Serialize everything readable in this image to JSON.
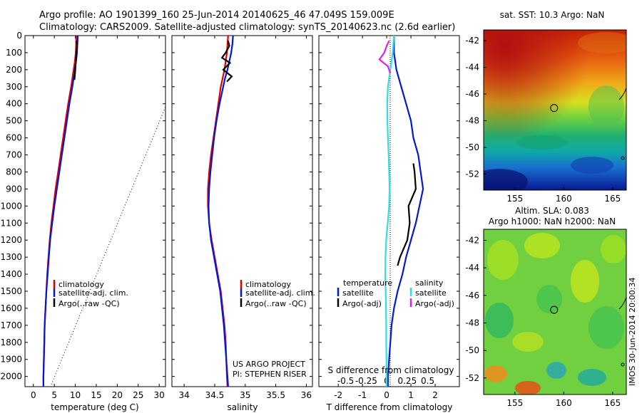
{
  "header": {
    "line1": "Argo profile: AO 1901399_160 25-Jun-2014 20140625_46 47.049S 159.009E",
    "line2": "Climatology: CARS2009. Satellite-adjusted climatology: synTS_20140623.nc (2.6d earlier)"
  },
  "colors": {
    "climatology": "#e00000",
    "satellite": "#0018d8",
    "argo": "#000000",
    "satellite_salinity": "#30e0e0",
    "argo_salinity_adj": "#e020e0"
  },
  "chart_data": [
    {
      "type": "line",
      "id": "temperature",
      "xlabel": "temperature (deg C)",
      "xticks": [
        "0",
        "5",
        "10",
        "15",
        "20",
        "25",
        "30"
      ],
      "xlim": [
        -2,
        31.5
      ],
      "ylim": [
        2060,
        0
      ],
      "yticks": [
        "0",
        "100",
        "200",
        "300",
        "400",
        "500",
        "600",
        "700",
        "800",
        "900",
        "1000",
        "1100",
        "1200",
        "1300",
        "1400",
        "1500",
        "1600",
        "1700",
        "1800",
        "1900",
        "2000"
      ],
      "legend": [
        "climatology",
        "satellite-adj. clim.",
        "Argo(..raw -QC)"
      ],
      "series": [
        {
          "name": "climatology",
          "depth": [
            0,
            50,
            100,
            150,
            200,
            250,
            300,
            400,
            500,
            600,
            700,
            800,
            900,
            1000,
            1100,
            1200,
            1300,
            1400,
            1500,
            1600,
            1700,
            1800,
            1900,
            2000,
            2060
          ],
          "values": [
            10.2,
            10.2,
            10.1,
            9.9,
            9.6,
            9.3,
            9.0,
            8.3,
            7.7,
            7.1,
            6.5,
            5.9,
            5.3,
            4.8,
            4.3,
            3.9,
            3.6,
            3.3,
            3.1,
            2.9,
            2.7,
            2.6,
            2.5,
            2.4,
            2.4
          ]
        },
        {
          "name": "satellite-adj. clim.",
          "depth": [
            0,
            50,
            100,
            150,
            200,
            250,
            300,
            400,
            500,
            600,
            700,
            800,
            900,
            1000,
            1100,
            1200,
            1300,
            1400,
            1500,
            1600,
            1700,
            1800,
            1900,
            2000,
            2060
          ],
          "values": [
            10.6,
            10.5,
            10.4,
            10.2,
            9.9,
            9.6,
            9.3,
            8.6,
            8.0,
            7.4,
            6.8,
            6.2,
            5.6,
            5.0,
            4.5,
            4.0,
            3.7,
            3.4,
            3.1,
            2.9,
            2.7,
            2.6,
            2.5,
            2.4,
            2.4
          ]
        },
        {
          "name": "Argo(..raw -QC)",
          "depth": [
            30,
            60,
            100,
            150,
            200,
            260
          ],
          "values": [
            10.3,
            10.4,
            10.3,
            10.1,
            10.0,
            9.8
          ]
        }
      ]
    },
    {
      "type": "line",
      "id": "salinity",
      "xlabel": "salinity",
      "xticks": [
        "34",
        "34.5",
        "35",
        "35.5",
        "36"
      ],
      "xlim": [
        33.8,
        36.1
      ],
      "ylim": [
        2060,
        0
      ],
      "legend": [
        "climatology",
        "satellite-adj. clim.",
        "Argo(..raw -QC)"
      ],
      "annotation": [
        "US ARGO PROJECT",
        "PI: STEPHEN RISER"
      ],
      "series": [
        {
          "name": "climatology",
          "depth": [
            0,
            50,
            100,
            150,
            200,
            250,
            300,
            400,
            500,
            600,
            700,
            800,
            900,
            1000,
            1100,
            1200,
            1300,
            1400,
            1500,
            1600,
            1700,
            1800,
            1900,
            2000,
            2060
          ],
          "values": [
            34.72,
            34.71,
            34.7,
            34.68,
            34.66,
            34.63,
            34.6,
            34.56,
            34.52,
            34.48,
            34.44,
            34.41,
            34.39,
            34.39,
            34.41,
            34.45,
            34.5,
            34.55,
            34.6,
            34.63,
            34.66,
            34.68,
            34.69,
            34.7,
            34.71
          ]
        },
        {
          "name": "satellite-adj. clim.",
          "depth": [
            0,
            50,
            100,
            150,
            200,
            250,
            300,
            400,
            500,
            600,
            700,
            800,
            900,
            1000,
            1100,
            1200,
            1300,
            1400,
            1500,
            1600,
            1700,
            1800,
            1900,
            2000,
            2060
          ],
          "values": [
            34.8,
            34.79,
            34.77,
            34.74,
            34.71,
            34.67,
            34.64,
            34.58,
            34.53,
            34.49,
            34.46,
            34.43,
            34.41,
            34.4,
            34.41,
            34.44,
            34.49,
            34.54,
            34.59,
            34.62,
            34.65,
            34.67,
            34.69,
            34.71,
            34.72
          ]
        },
        {
          "name": "Argo(..raw -QC)",
          "depth": [
            30,
            60,
            100,
            130,
            160,
            200,
            240,
            270
          ],
          "values": [
            34.72,
            34.74,
            34.68,
            34.62,
            34.75,
            34.64,
            34.78,
            34.7
          ]
        }
      ]
    },
    {
      "type": "line",
      "id": "difference",
      "xlabel": "T difference from climatology",
      "top_xlabel": "S difference from climatology",
      "xticks": [
        "-2",
        "-1",
        "0",
        "1",
        "2"
      ],
      "top_xticks": [
        "-0.5",
        "-0.25",
        "0",
        "0.25",
        "0.5"
      ],
      "xlim": [
        -2.8,
        3.0
      ],
      "ylim": [
        2060,
        0
      ],
      "legend_temperature": {
        "header": "temperature",
        "items": [
          "satellite",
          "Argo(-adj)"
        ]
      },
      "legend_salinity": {
        "header": "salinity",
        "items": [
          "satellite",
          "Argo(-adj)"
        ]
      },
      "series": [
        {
          "name": "temperature satellite",
          "depth": [
            0,
            100,
            200,
            300,
            400,
            500,
            600,
            700,
            800,
            900,
            1000,
            1100,
            1200,
            1300,
            1400,
            1500,
            1600,
            1700,
            1800,
            1900,
            2000,
            2060
          ],
          "values": [
            0.3,
            0.3,
            0.4,
            0.6,
            0.8,
            1.0,
            1.1,
            1.3,
            1.4,
            1.5,
            1.35,
            1.2,
            1.0,
            0.8,
            0.65,
            0.45,
            0.3,
            0.2,
            0.15,
            0.1,
            0.05,
            0.05
          ]
        },
        {
          "name": "temperature Argo(-adj)",
          "depth": [
            750,
            800,
            900,
            1000,
            1100,
            1200,
            1300,
            1350
          ],
          "values": [
            1.1,
            1.15,
            1.2,
            0.9,
            0.95,
            0.85,
            0.55,
            0.45
          ]
        },
        {
          "name": "salinity satellite",
          "depth": [
            0,
            100,
            200,
            300,
            400,
            500,
            600,
            700,
            800,
            900,
            1000,
            1100,
            1200,
            1300,
            1400,
            1500,
            1600,
            1700,
            1800,
            1900,
            2000,
            2060
          ],
          "values": [
            0.3,
            0.25,
            0.15,
            0.05,
            0.02,
            0.03,
            0.05,
            0.08,
            0.1,
            0.12,
            0.1,
            0.04,
            -0.02,
            -0.05,
            -0.06,
            -0.04,
            -0.03,
            -0.02,
            -0.02,
            -0.01,
            -0.01,
            -0.01
          ]
        },
        {
          "name": "salinity Argo(-adj)",
          "depth": [
            30,
            60,
            100,
            140,
            180,
            220
          ],
          "values": [
            0.1,
            0.0,
            -0.1,
            -0.3,
            0.05,
            0.15
          ]
        }
      ]
    }
  ],
  "maps": {
    "sst": {
      "title": "sat. SST: 10.3 Argo: NaN",
      "lat_ticks": [
        "-42",
        "-44",
        "-46",
        "-48",
        "-50",
        "-52"
      ],
      "lon_ticks": [
        "155",
        "160",
        "165"
      ],
      "lat_range": [
        -53.2,
        -41.2
      ],
      "lon_range": [
        151.8,
        166.4
      ],
      "argo_position": {
        "lat": -47.049,
        "lon": 159.009
      }
    },
    "sla": {
      "title_line1": "Altim. SLA: 0.083",
      "title_line2": "Argo h1000: NaN h2000: NaN",
      "lat_ticks": [
        "-42",
        "-44",
        "-46",
        "-48",
        "-50",
        "-52"
      ],
      "lon_ticks": [
        "155",
        "160",
        "165"
      ],
      "lat_range": [
        -53.2,
        -41.2
      ],
      "lon_range": [
        151.8,
        166.4
      ],
      "argo_position": {
        "lat": -47.049,
        "lon": 159.009
      }
    },
    "footer_stamp": "IMOS 30-Jun-2014 20:00:34"
  }
}
